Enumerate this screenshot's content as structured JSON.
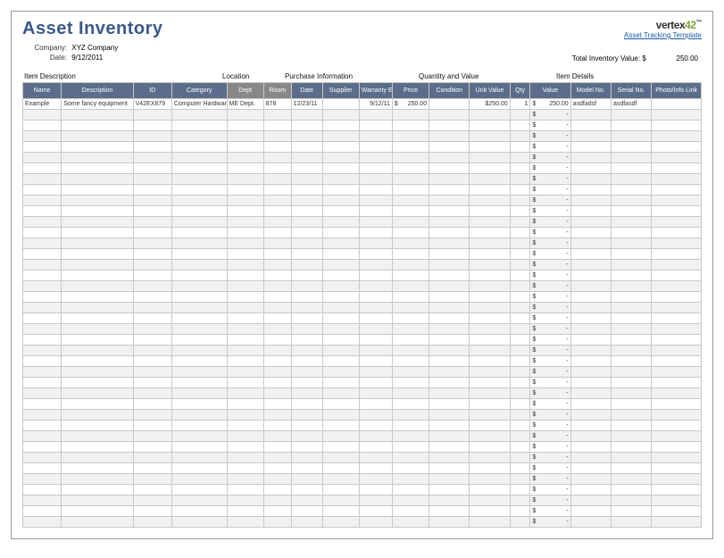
{
  "title": "Asset Inventory",
  "brand": {
    "name": "vertex42",
    "link_text": "Asset Tracking Template"
  },
  "meta": {
    "company_label": "Company:",
    "company_value": "XYZ Company",
    "date_label": "Date:",
    "date_value": "9/12/2011",
    "total_label": "Total Inventory Value:",
    "total_currency": "$",
    "total_value": "250.00"
  },
  "group_headers": {
    "item_desc": "Item Description",
    "location": "Location",
    "purchase": "Purchase Information",
    "qty_val": "Quantity and Value",
    "details": "Item Details"
  },
  "columns": [
    "Name",
    "Description",
    "ID",
    "Category",
    "Dept",
    "Room",
    "Date",
    "Supplier",
    "Warranty Expiration",
    "Price",
    "Condition",
    "Unit Value",
    "Qty",
    "Value",
    "Model No.",
    "Serial No.",
    "Photo/Info Link"
  ],
  "column_groups": {
    "location_cols": [
      4,
      5
    ]
  },
  "data_row": {
    "name": "Example",
    "desc": "Some fancy equipment",
    "id": "V42EX879",
    "cat": "Computer Hardware",
    "dept": "ME Dept.",
    "room": "878",
    "date": "12/23/11",
    "supplier": "",
    "warranty": "9/12/11",
    "price": "250.00",
    "condition": "",
    "unit_value": "$250.00",
    "qty": "1",
    "value": "250.00",
    "model": "asdfadsf",
    "serial": "asdfasdf",
    "link": ""
  },
  "empty_row_count": 39,
  "currency_symbol": "$",
  "dash": "-",
  "colors": {
    "title": "#3b5a8a",
    "header_main": "#5b6d8a",
    "header_loc": "#888888",
    "border": "#c8c8c8",
    "row_alt": "#f1f1f1",
    "link": "#1a5aa8",
    "logo_num": "#7aa03c"
  }
}
